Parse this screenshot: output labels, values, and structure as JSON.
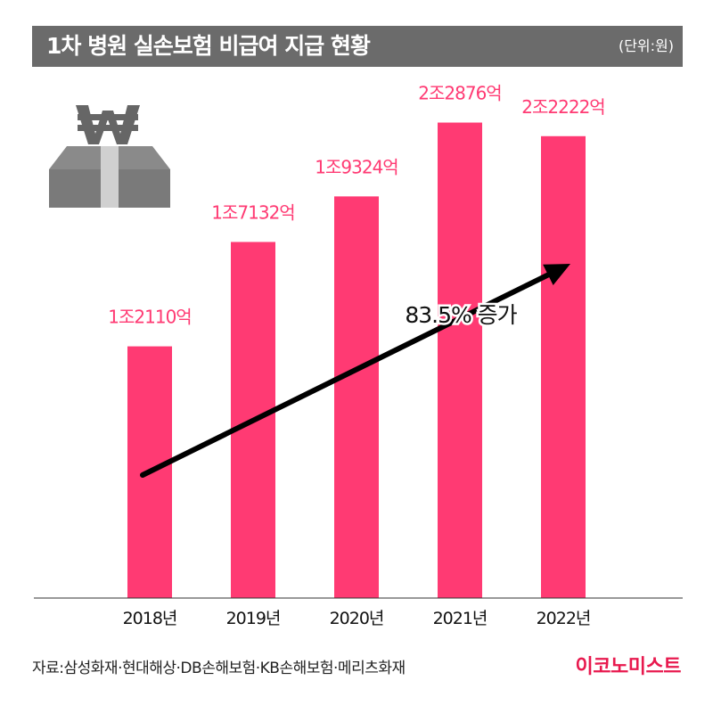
{
  "header": {
    "title": "1차 병원 실손보험 비급여 지급 현황",
    "unit": "(단위:원)"
  },
  "colors": {
    "bar": "#ff3a73",
    "value_label": "#ff3a73",
    "title_bg": "#6b6b6b",
    "arrow": "#000000",
    "brand": "#e8194e"
  },
  "icons": {
    "decoration": "money-box-icon"
  },
  "chart_data": {
    "type": "bar",
    "categories": [
      "2018년",
      "2019년",
      "2020년",
      "2021년",
      "2022년"
    ],
    "values": [
      12110,
      17132,
      19324,
      22876,
      22222
    ],
    "value_unit": "억",
    "data_labels": [
      "1조2110억",
      "1조7132억",
      "1조9324억",
      "2조2876억",
      "2조2222억"
    ],
    "ylim": [
      0,
      25000
    ],
    "grid": false,
    "annotation": "83.5% 증가"
  },
  "footer": {
    "source": "자료:삼성화재·현대해상·DB손해보험·KB손해보험·메리츠화재",
    "brand": "이코노미스트"
  }
}
